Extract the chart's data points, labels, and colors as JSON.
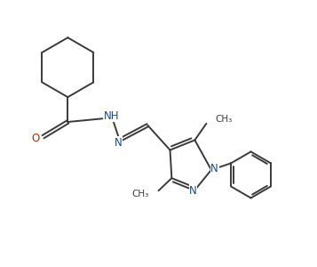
{
  "bg_color": "#ffffff",
  "line_color": "#3a3a3a",
  "N_color": "#1a4a8a",
  "O_color": "#b03000",
  "figsize": [
    3.57,
    3.0
  ],
  "dpi": 100,
  "lw": 1.4,
  "xlim": [
    0,
    9.5
  ],
  "ylim": [
    0,
    8.0
  ]
}
